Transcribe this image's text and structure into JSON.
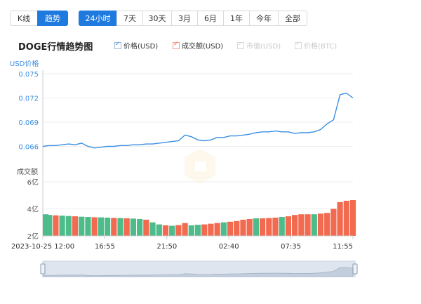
{
  "tabs_view": [
    {
      "label": "K线",
      "active": false
    },
    {
      "label": "趋势",
      "active": true
    }
  ],
  "tabs_range": [
    {
      "label": "24小时",
      "active": true
    },
    {
      "label": "7天",
      "active": false
    },
    {
      "label": "30天",
      "active": false
    },
    {
      "label": "3月",
      "active": false
    },
    {
      "label": "6月",
      "active": false
    },
    {
      "label": "1年",
      "active": false
    },
    {
      "label": "今年",
      "active": false
    },
    {
      "label": "全部",
      "active": false
    }
  ],
  "chart_title": "DOGE行情趋势图",
  "legend": [
    {
      "label": "价格(USD)",
      "checked": true,
      "color": "#3b8fe2"
    },
    {
      "label": "成交额(USD)",
      "checked": true,
      "color": "#f26a4f"
    },
    {
      "label": "市值(USD)",
      "checked": false,
      "color": "#c8c8c8"
    },
    {
      "label": "价格(BTC)",
      "checked": false,
      "color": "#c8c8c8"
    }
  ],
  "price_axis_label": "USD价格",
  "volume_axis_label": "成交额",
  "colors": {
    "price_line": "#3b8fe2",
    "volume_up": "#f26a4f",
    "volume_down": "#4dbb8a",
    "accent": "#1f7ae0"
  },
  "chart_data": [
    {
      "type": "line",
      "name": "价格(USD)",
      "ylabel": "USD价格",
      "ylim": [
        0.065,
        0.075
      ],
      "yticks": [
        0.066,
        0.069,
        0.072,
        0.075
      ],
      "ytick_labels": [
        "0.066",
        "0.069",
        "0.072",
        "0.075"
      ],
      "xticks": [
        "2023-10-25 12:00",
        "16:55",
        "21:50",
        "02:40",
        "07:35",
        "11:55"
      ],
      "series": [
        {
          "name": "价格(USD)",
          "x": [
            "12:00",
            "12:30",
            "13:00",
            "13:30",
            "14:00",
            "14:30",
            "15:00",
            "15:30",
            "16:00",
            "16:30",
            "17:00",
            "17:30",
            "18:00",
            "18:30",
            "19:00",
            "19:30",
            "20:00",
            "20:30",
            "21:00",
            "21:30",
            "22:00",
            "22:30",
            "23:00",
            "23:30",
            "00:00",
            "00:30",
            "01:00",
            "01:30",
            "02:00",
            "02:30",
            "03:00",
            "03:30",
            "04:00",
            "04:30",
            "05:00",
            "05:30",
            "06:00",
            "06:30",
            "07:00",
            "07:30",
            "08:00",
            "08:30",
            "09:00",
            "09:30",
            "10:00",
            "10:30",
            "11:00",
            "11:30",
            "11:55"
          ],
          "values": [
            0.066,
            0.0661,
            0.0661,
            0.0662,
            0.0663,
            0.0662,
            0.0664,
            0.066,
            0.0658,
            0.0659,
            0.066,
            0.066,
            0.0661,
            0.0661,
            0.0662,
            0.0662,
            0.0663,
            0.0663,
            0.0664,
            0.0665,
            0.0666,
            0.0667,
            0.0674,
            0.0672,
            0.0668,
            0.0667,
            0.0668,
            0.0671,
            0.0671,
            0.0673,
            0.0673,
            0.0674,
            0.0675,
            0.0677,
            0.0678,
            0.0678,
            0.0679,
            0.0678,
            0.0678,
            0.0676,
            0.0677,
            0.0677,
            0.0678,
            0.0681,
            0.0688,
            0.0693,
            0.0724,
            0.0726,
            0.072
          ]
        }
      ]
    },
    {
      "type": "bar",
      "name": "成交额(USD)",
      "ylabel": "成交额",
      "ylim": [
        2,
        6
      ],
      "yticks": [
        2,
        4,
        6
      ],
      "ytick_labels": [
        "2亿",
        "4亿",
        "6亿"
      ],
      "series": [
        {
          "name": "成交额(USD)",
          "x": [
            "12:00",
            "12:30",
            "13:00",
            "13:30",
            "14:00",
            "14:30",
            "15:00",
            "15:30",
            "16:00",
            "16:30",
            "17:00",
            "17:30",
            "18:00",
            "18:30",
            "19:00",
            "19:30",
            "20:00",
            "20:30",
            "21:00",
            "21:30",
            "22:00",
            "22:30",
            "23:00",
            "23:30",
            "00:00",
            "00:30",
            "01:00",
            "01:30",
            "02:00",
            "02:30",
            "03:00",
            "03:30",
            "04:00",
            "04:30",
            "05:00",
            "05:30",
            "06:00",
            "06:30",
            "07:00",
            "07:30",
            "08:00",
            "08:30",
            "09:00",
            "09:30",
            "10:00",
            "10:30",
            "11:00",
            "11:30",
            "11:55"
          ],
          "values": [
            3.6,
            3.55,
            3.52,
            3.5,
            3.47,
            3.45,
            3.42,
            3.4,
            3.38,
            3.37,
            3.35,
            3.33,
            3.32,
            3.3,
            3.28,
            3.25,
            3.2,
            3.0,
            2.85,
            2.78,
            2.75,
            2.8,
            2.95,
            2.78,
            2.82,
            2.85,
            2.9,
            2.95,
            3.0,
            3.05,
            3.1,
            3.2,
            3.25,
            3.3,
            3.3,
            3.32,
            3.35,
            3.4,
            3.45,
            3.55,
            3.6,
            3.6,
            3.6,
            3.65,
            3.7,
            4.0,
            4.5,
            4.6,
            4.65
          ],
          "up": [
            false,
            false,
            true,
            false,
            false,
            true,
            false,
            false,
            true,
            false,
            false,
            true,
            false,
            true,
            false,
            false,
            true,
            false,
            false,
            true,
            false,
            true,
            true,
            false,
            false,
            true,
            true,
            true,
            false,
            true,
            true,
            true,
            true,
            false,
            true,
            true,
            true,
            false,
            true,
            true,
            true,
            true,
            false,
            true,
            true,
            true,
            true,
            true,
            true
          ]
        }
      ]
    }
  ]
}
